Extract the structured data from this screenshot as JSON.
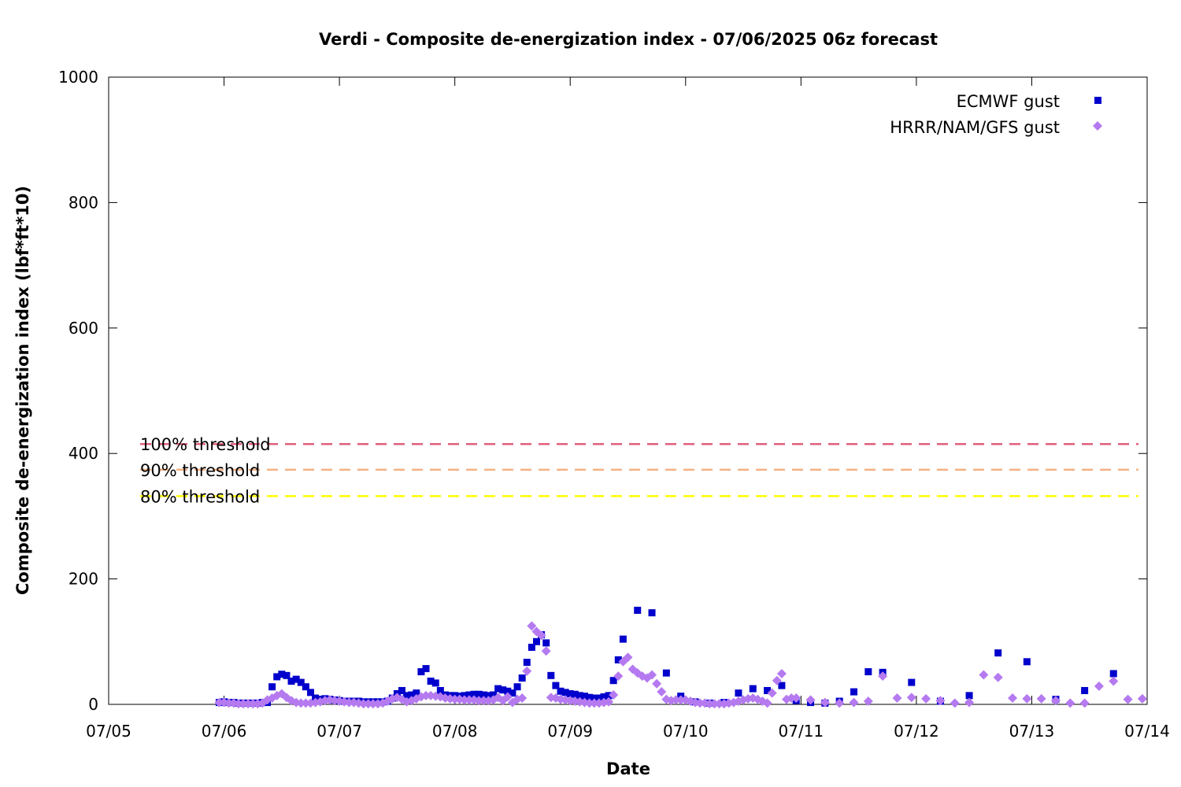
{
  "chart_data": {
    "type": "scatter",
    "title": "Verdi - Composite de-energization index - 07/06/2025 06z forecast",
    "xlabel": "Date",
    "ylabel": "Composite de-energization index (lbf*ft*10)",
    "xlim": [
      "07/05",
      "07/14"
    ],
    "ylim": [
      0,
      1000
    ],
    "x_ticks": [
      "07/05",
      "07/06",
      "07/07",
      "07/08",
      "07/09",
      "07/10",
      "07/11",
      "07/12",
      "07/13",
      "07/14"
    ],
    "y_ticks": [
      0,
      200,
      400,
      600,
      800,
      1000
    ],
    "legend_position": "top-right",
    "grid": false,
    "thresholds": [
      {
        "name": "100% threshold",
        "value": 415,
        "color": "#e0607e"
      },
      {
        "name": "90% threshold",
        "value": 374,
        "color": "#f4b183"
      },
      {
        "name": "80% threshold",
        "value": 332,
        "color": "#ffff00"
      }
    ],
    "series": [
      {
        "name": "ECMWF gust",
        "marker": "square",
        "color": "#0000cc",
        "points": [
          [
            "07/05 23:00",
            3
          ],
          [
            "07/06 00:00",
            4
          ],
          [
            "07/06 01:00",
            3
          ],
          [
            "07/06 02:00",
            3
          ],
          [
            "07/06 03:00",
            2
          ],
          [
            "07/06 04:00",
            2
          ],
          [
            "07/06 05:00",
            2
          ],
          [
            "07/06 06:00",
            2
          ],
          [
            "07/06 07:00",
            2
          ],
          [
            "07/06 08:00",
            3
          ],
          [
            "07/06 09:00",
            3
          ],
          [
            "07/06 10:00",
            28
          ],
          [
            "07/06 11:00",
            44
          ],
          [
            "07/06 12:00",
            48
          ],
          [
            "07/06 13:00",
            46
          ],
          [
            "07/06 14:00",
            37
          ],
          [
            "07/06 15:00",
            40
          ],
          [
            "07/06 16:00",
            35
          ],
          [
            "07/06 17:00",
            28
          ],
          [
            "07/06 18:00",
            19
          ],
          [
            "07/06 19:00",
            10
          ],
          [
            "07/06 20:00",
            8
          ],
          [
            "07/06 21:00",
            9
          ],
          [
            "07/06 22:00",
            8
          ],
          [
            "07/06 23:00",
            7
          ],
          [
            "07/07 00:00",
            6
          ],
          [
            "07/07 01:00",
            5
          ],
          [
            "07/07 02:00",
            5
          ],
          [
            "07/07 03:00",
            5
          ],
          [
            "07/07 04:00",
            5
          ],
          [
            "07/07 05:00",
            4
          ],
          [
            "07/07 06:00",
            4
          ],
          [
            "07/07 07:00",
            4
          ],
          [
            "07/07 08:00",
            4
          ],
          [
            "07/07 09:00",
            4
          ],
          [
            "07/07 10:00",
            5
          ],
          [
            "07/07 11:00",
            10
          ],
          [
            "07/07 12:00",
            17
          ],
          [
            "07/07 13:00",
            22
          ],
          [
            "07/07 14:00",
            14
          ],
          [
            "07/07 15:00",
            15
          ],
          [
            "07/07 16:00",
            18
          ],
          [
            "07/07 17:00",
            52
          ],
          [
            "07/07 18:00",
            57
          ],
          [
            "07/07 19:00",
            37
          ],
          [
            "07/07 20:00",
            34
          ],
          [
            "07/07 21:00",
            22
          ],
          [
            "07/07 22:00",
            15
          ],
          [
            "07/07 23:00",
            14
          ],
          [
            "07/08 00:00",
            14
          ],
          [
            "07/08 01:00",
            13
          ],
          [
            "07/08 02:00",
            14
          ],
          [
            "07/08 03:00",
            15
          ],
          [
            "07/08 04:00",
            16
          ],
          [
            "07/08 05:00",
            16
          ],
          [
            "07/08 06:00",
            15
          ],
          [
            "07/08 07:00",
            14
          ],
          [
            "07/08 08:00",
            15
          ],
          [
            "07/08 09:00",
            25
          ],
          [
            "07/08 10:00",
            23
          ],
          [
            "07/08 11:00",
            21
          ],
          [
            "07/08 12:00",
            18
          ],
          [
            "07/08 13:00",
            28
          ],
          [
            "07/08 14:00",
            42
          ],
          [
            "07/08 15:00",
            67
          ],
          [
            "07/08 16:00",
            91
          ],
          [
            "07/08 17:00",
            100
          ],
          [
            "07/08 18:00",
            111
          ],
          [
            "07/08 19:00",
            98
          ],
          [
            "07/08 20:00",
            46
          ],
          [
            "07/08 21:00",
            30
          ],
          [
            "07/08 22:00",
            21
          ],
          [
            "07/08 23:00",
            19
          ],
          [
            "07/09 00:00",
            17
          ],
          [
            "07/09 01:00",
            16
          ],
          [
            "07/09 02:00",
            14
          ],
          [
            "07/09 03:00",
            13
          ],
          [
            "07/09 04:00",
            11
          ],
          [
            "07/09 05:00",
            10
          ],
          [
            "07/09 06:00",
            10
          ],
          [
            "07/09 07:00",
            12
          ],
          [
            "07/09 08:00",
            14
          ],
          [
            "07/09 09:00",
            38
          ],
          [
            "07/09 10:00",
            71
          ],
          [
            "07/09 11:00",
            104
          ],
          [
            "07/09 14:00",
            150
          ],
          [
            "07/09 17:00",
            146
          ],
          [
            "07/09 20:00",
            50
          ],
          [
            "07/09 23:00",
            13
          ],
          [
            "07/10 02:00",
            4
          ],
          [
            "07/10 05:00",
            2
          ],
          [
            "07/10 08:00",
            3
          ],
          [
            "07/10 11:00",
            18
          ],
          [
            "07/10 14:00",
            25
          ],
          [
            "07/10 17:00",
            22
          ],
          [
            "07/10 20:00",
            30
          ],
          [
            "07/10 23:00",
            6
          ],
          [
            "07/11 02:00",
            3
          ],
          [
            "07/11 05:00",
            2
          ],
          [
            "07/11 08:00",
            5
          ],
          [
            "07/11 11:00",
            20
          ],
          [
            "07/11 14:00",
            52
          ],
          [
            "07/11 17:00",
            51
          ],
          [
            "07/11 23:00",
            35
          ],
          [
            "07/12 05:00",
            5
          ],
          [
            "07/12 11:00",
            14
          ],
          [
            "07/12 17:00",
            82
          ],
          [
            "07/12 23:00",
            68
          ],
          [
            "07/13 05:00",
            8
          ],
          [
            "07/13 11:00",
            22
          ],
          [
            "07/13 17:00",
            49
          ]
        ]
      },
      {
        "name": "HRRR/NAM/GFS gust",
        "marker": "diamond",
        "color": "#b57af0",
        "points": [
          [
            "07/05 23:00",
            3
          ],
          [
            "07/06 00:00",
            3
          ],
          [
            "07/06 01:00",
            2
          ],
          [
            "07/06 02:00",
            2
          ],
          [
            "07/06 03:00",
            1
          ],
          [
            "07/06 04:00",
            1
          ],
          [
            "07/06 05:00",
            1
          ],
          [
            "07/06 06:00",
            1
          ],
          [
            "07/06 07:00",
            1
          ],
          [
            "07/06 08:00",
            2
          ],
          [
            "07/06 09:00",
            7
          ],
          [
            "07/06 10:00",
            10
          ],
          [
            "07/06 11:00",
            14
          ],
          [
            "07/06 12:00",
            17
          ],
          [
            "07/06 13:00",
            11
          ],
          [
            "07/06 14:00",
            6
          ],
          [
            "07/06 15:00",
            3
          ],
          [
            "07/06 16:00",
            2
          ],
          [
            "07/06 17:00",
            2
          ],
          [
            "07/06 18:00",
            2
          ],
          [
            "07/06 19:00",
            3
          ],
          [
            "07/06 20:00",
            4
          ],
          [
            "07/06 21:00",
            6
          ],
          [
            "07/06 22:00",
            7
          ],
          [
            "07/06 23:00",
            6
          ],
          [
            "07/07 00:00",
            5
          ],
          [
            "07/07 01:00",
            4
          ],
          [
            "07/07 02:00",
            3
          ],
          [
            "07/07 03:00",
            3
          ],
          [
            "07/07 04:00",
            2
          ],
          [
            "07/07 05:00",
            1
          ],
          [
            "07/07 06:00",
            1
          ],
          [
            "07/07 07:00",
            1
          ],
          [
            "07/07 08:00",
            1
          ],
          [
            "07/07 09:00",
            2
          ],
          [
            "07/07 10:00",
            5
          ],
          [
            "07/07 11:00",
            9
          ],
          [
            "07/07 12:00",
            11
          ],
          [
            "07/07 13:00",
            8
          ],
          [
            "07/07 14:00",
            4
          ],
          [
            "07/07 15:00",
            6
          ],
          [
            "07/07 16:00",
            9
          ],
          [
            "07/07 17:00",
            12
          ],
          [
            "07/07 18:00",
            14
          ],
          [
            "07/07 19:00",
            14
          ],
          [
            "07/07 20:00",
            13
          ],
          [
            "07/07 21:00",
            12
          ],
          [
            "07/07 22:00",
            10
          ],
          [
            "07/07 23:00",
            9
          ],
          [
            "07/08 00:00",
            8
          ],
          [
            "07/08 01:00",
            8
          ],
          [
            "07/08 02:00",
            7
          ],
          [
            "07/08 03:00",
            7
          ],
          [
            "07/08 04:00",
            7
          ],
          [
            "07/08 05:00",
            6
          ],
          [
            "07/08 06:00",
            6
          ],
          [
            "07/08 07:00",
            6
          ],
          [
            "07/08 08:00",
            7
          ],
          [
            "07/08 09:00",
            11
          ],
          [
            "07/08 10:00",
            6
          ],
          [
            "07/08 11:00",
            12
          ],
          [
            "07/08 12:00",
            3
          ],
          [
            "07/08 13:00",
            8
          ],
          [
            "07/08 14:00",
            10
          ],
          [
            "07/08 15:00",
            53
          ],
          [
            "07/08 16:00",
            125
          ],
          [
            "07/08 17:00",
            116
          ],
          [
            "07/08 18:00",
            110
          ],
          [
            "07/08 19:00",
            85
          ],
          [
            "07/08 20:00",
            11
          ],
          [
            "07/08 21:00",
            10
          ],
          [
            "07/08 22:00",
            8
          ],
          [
            "07/08 23:00",
            7
          ],
          [
            "07/09 00:00",
            6
          ],
          [
            "07/09 01:00",
            5
          ],
          [
            "07/09 02:00",
            4
          ],
          [
            "07/09 03:00",
            3
          ],
          [
            "07/09 04:00",
            2
          ],
          [
            "07/09 05:00",
            2
          ],
          [
            "07/09 06:00",
            2
          ],
          [
            "07/09 07:00",
            3
          ],
          [
            "07/09 08:00",
            4
          ],
          [
            "07/09 09:00",
            15
          ],
          [
            "07/09 10:00",
            45
          ],
          [
            "07/09 11:00",
            68
          ],
          [
            "07/09 12:00",
            75
          ],
          [
            "07/09 13:00",
            56
          ],
          [
            "07/09 14:00",
            50
          ],
          [
            "07/09 15:00",
            45
          ],
          [
            "07/09 16:00",
            42
          ],
          [
            "07/09 17:00",
            47
          ],
          [
            "07/09 18:00",
            33
          ],
          [
            "07/09 19:00",
            20
          ],
          [
            "07/09 20:00",
            8
          ],
          [
            "07/09 21:00",
            6
          ],
          [
            "07/09 22:00",
            7
          ],
          [
            "07/09 23:00",
            7
          ],
          [
            "07/10 00:00",
            7
          ],
          [
            "07/10 01:00",
            5
          ],
          [
            "07/10 02:00",
            3
          ],
          [
            "07/10 03:00",
            2
          ],
          [
            "07/10 04:00",
            2
          ],
          [
            "07/10 05:00",
            1
          ],
          [
            "07/10 06:00",
            1
          ],
          [
            "07/10 07:00",
            1
          ],
          [
            "07/10 08:00",
            1
          ],
          [
            "07/10 09:00",
            2
          ],
          [
            "07/10 10:00",
            3
          ],
          [
            "07/10 11:00",
            5
          ],
          [
            "07/10 12:00",
            7
          ],
          [
            "07/10 13:00",
            9
          ],
          [
            "07/10 14:00",
            10
          ],
          [
            "07/10 15:00",
            8
          ],
          [
            "07/10 16:00",
            5
          ],
          [
            "07/10 17:00",
            2
          ],
          [
            "07/10 18:00",
            18
          ],
          [
            "07/10 19:00",
            38
          ],
          [
            "07/10 20:00",
            49
          ],
          [
            "07/10 21:00",
            8
          ],
          [
            "07/10 22:00",
            10
          ],
          [
            "07/10 23:00",
            10
          ],
          [
            "07/11 02:00",
            7
          ],
          [
            "07/11 05:00",
            3
          ],
          [
            "07/11 08:00",
            2
          ],
          [
            "07/11 11:00",
            3
          ],
          [
            "07/11 14:00",
            5
          ],
          [
            "07/11 17:00",
            45
          ],
          [
            "07/11 20:00",
            10
          ],
          [
            "07/11 23:00",
            11
          ],
          [
            "07/12 02:00",
            9
          ],
          [
            "07/12 05:00",
            6
          ],
          [
            "07/12 08:00",
            2
          ],
          [
            "07/12 11:00",
            3
          ],
          [
            "07/12 14:00",
            47
          ],
          [
            "07/12 17:00",
            43
          ],
          [
            "07/12 20:00",
            10
          ],
          [
            "07/12 23:00",
            9
          ],
          [
            "07/13 02:00",
            9
          ],
          [
            "07/13 05:00",
            6
          ],
          [
            "07/13 08:00",
            2
          ],
          [
            "07/13 11:00",
            2
          ],
          [
            "07/13 14:00",
            29
          ],
          [
            "07/13 17:00",
            37
          ],
          [
            "07/13 20:00",
            8
          ],
          [
            "07/13 23:00",
            9
          ]
        ]
      }
    ]
  }
}
